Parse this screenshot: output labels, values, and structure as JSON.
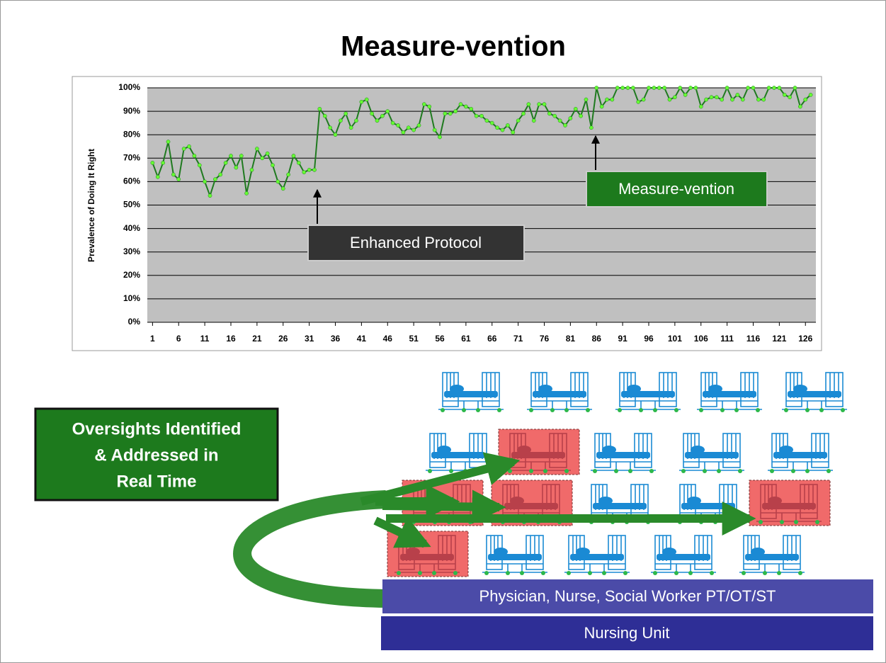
{
  "chart_data": {
    "type": "line",
    "title": "Measure-vention",
    "y_label": "Prevalence of Doing It Right",
    "x": [
      1,
      2,
      3,
      4,
      5,
      6,
      7,
      8,
      9,
      10,
      11,
      12,
      13,
      14,
      15,
      16,
      17,
      18,
      19,
      20,
      21,
      22,
      23,
      24,
      25,
      26,
      27,
      28,
      29,
      30,
      31,
      32,
      33,
      34,
      35,
      36,
      37,
      38,
      39,
      40,
      41,
      42,
      43,
      44,
      45,
      46,
      47,
      48,
      49,
      50,
      51,
      52,
      53,
      54,
      55,
      56,
      57,
      58,
      59,
      60,
      61,
      62,
      63,
      64,
      65,
      66,
      67,
      68,
      69,
      70,
      71,
      72,
      73,
      74,
      75,
      76,
      77,
      78,
      79,
      80,
      81,
      82,
      83,
      84,
      85,
      86,
      87,
      88,
      89,
      90,
      91,
      92,
      93,
      94,
      95,
      96,
      97,
      98,
      99,
      100,
      101,
      102,
      103,
      104,
      105,
      106,
      107,
      108,
      109,
      110,
      111,
      112,
      113,
      114,
      115,
      116,
      117,
      118,
      119,
      120,
      121,
      122,
      123,
      124,
      125,
      126,
      127
    ],
    "values": [
      68,
      62,
      68,
      77,
      63,
      61,
      74,
      75,
      71,
      67,
      60,
      54,
      61,
      63,
      68,
      71,
      66,
      71,
      55,
      65,
      74,
      70,
      72,
      67,
      60,
      57,
      63,
      71,
      68,
      64,
      65,
      65,
      91,
      88,
      83,
      80,
      86,
      89,
      83,
      86,
      94,
      95,
      89,
      86,
      88,
      90,
      85,
      84,
      81,
      83,
      82,
      84,
      93,
      92,
      82,
      79,
      89,
      89,
      90,
      93,
      92,
      91,
      88,
      88,
      86,
      85,
      83,
      82,
      84,
      81,
      86,
      89,
      93,
      86,
      93,
      93,
      89,
      88,
      86,
      84,
      87,
      91,
      88,
      95,
      83,
      100,
      92,
      95,
      95,
      100,
      100,
      100,
      100,
      94,
      95,
      100,
      100,
      100,
      100,
      95,
      96,
      100,
      97,
      100,
      100,
      92,
      95,
      96,
      96,
      95,
      100,
      95,
      97,
      95,
      100,
      100,
      95,
      95,
      100,
      100,
      100,
      97,
      96,
      100,
      92,
      95,
      97
    ],
    "color": "#1f7a1f",
    "marker_color": "#66ff33",
    "xlim": [
      0,
      128
    ],
    "xticks": [
      1,
      6,
      11,
      16,
      21,
      26,
      31,
      36,
      41,
      46,
      51,
      56,
      61,
      66,
      71,
      76,
      81,
      86,
      91,
      96,
      101,
      106,
      111,
      116,
      121,
      126
    ],
    "ylim": [
      0,
      100
    ],
    "yticks": [
      {
        "value": 0,
        "label": "0%"
      },
      {
        "value": 10,
        "label": "10%"
      },
      {
        "value": 20,
        "label": "20%"
      },
      {
        "value": 30,
        "label": "30%"
      },
      {
        "value": 40,
        "label": "40%"
      },
      {
        "value": 50,
        "label": "50%"
      },
      {
        "value": 60,
        "label": "60%"
      },
      {
        "value": 70,
        "label": "70%"
      },
      {
        "value": 80,
        "label": "80%"
      },
      {
        "value": 90,
        "label": "90%"
      },
      {
        "value": 100,
        "label": "100%"
      }
    ],
    "grid": true,
    "annotations": [
      "Enhanced Protocol",
      "Measure-vention"
    ]
  },
  "diagram": {
    "callout": [
      "Oversights Identified",
      "& Addressed in",
      "Real Time"
    ],
    "team": "Physician, Nurse, Social Worker PT/OT/ST",
    "unit": "Nursing Unit"
  }
}
